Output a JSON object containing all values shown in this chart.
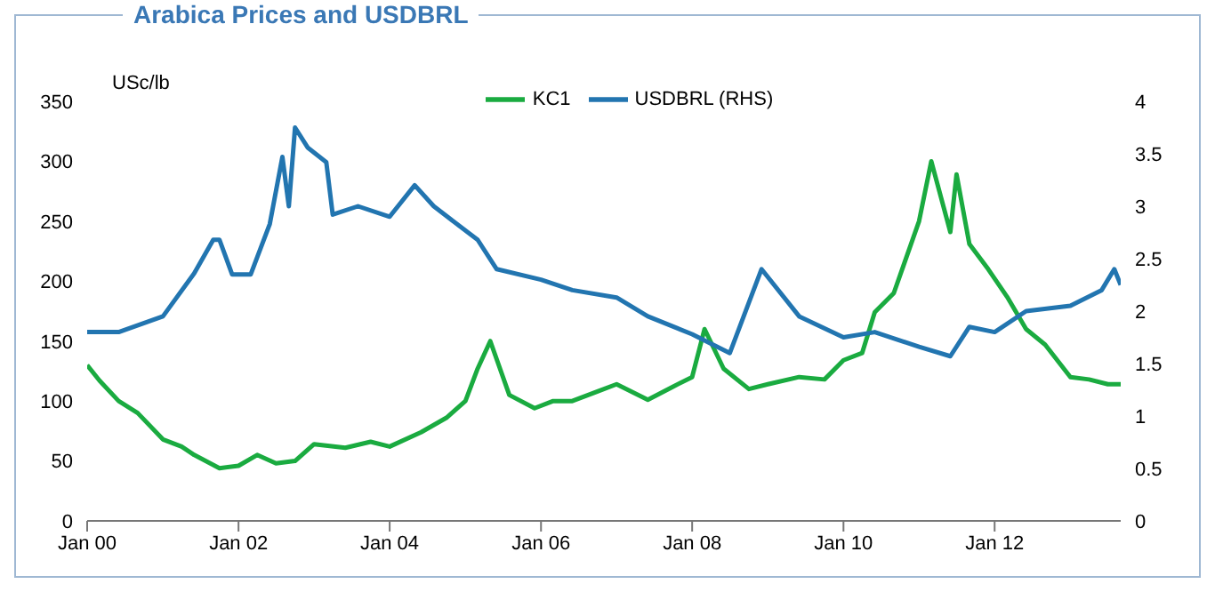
{
  "chart_data": {
    "type": "line",
    "title": "Arabica Prices and USDBRL",
    "ylabel": "USc/lb",
    "series": [
      {
        "name": "KC1",
        "color": "#1aab40",
        "x": [
          "2000-01",
          "2000-03",
          "2000-06",
          "2000-09",
          "2001-01",
          "2001-04",
          "2001-06",
          "2001-10",
          "2002-01",
          "2002-04",
          "2002-07",
          "2002-10",
          "2003-01",
          "2003-06",
          "2003-10",
          "2004-01",
          "2004-06",
          "2004-10",
          "2005-01",
          "2005-03",
          "2005-05",
          "2005-08",
          "2005-12",
          "2006-03",
          "2006-06",
          "2006-10",
          "2007-01",
          "2007-06",
          "2007-10",
          "2008-01",
          "2008-03",
          "2008-06",
          "2008-10",
          "2009-01",
          "2009-06",
          "2009-10",
          "2010-01",
          "2010-04",
          "2010-06",
          "2010-09",
          "2011-01",
          "2011-03",
          "2011-06",
          "2011-07",
          "2011-09",
          "2011-12",
          "2012-03",
          "2012-06",
          "2012-09",
          "2013-01",
          "2013-04",
          "2013-07",
          "2013-09"
        ],
        "values": [
          130,
          117,
          100,
          90,
          68,
          62,
          55,
          44,
          46,
          55,
          48,
          50,
          64,
          61,
          66,
          62,
          74,
          86,
          100,
          127,
          150,
          105,
          94,
          100,
          100,
          108,
          114,
          101,
          112,
          120,
          160,
          127,
          110,
          114,
          120,
          118,
          134,
          140,
          174,
          190,
          250,
          300,
          241,
          289,
          231,
          210,
          187,
          160,
          147,
          120,
          118,
          114,
          114
        ]
      },
      {
        "name": "USDBRL (RHS)",
        "color": "#2275b0",
        "axis": "y2",
        "x": [
          "2000-01",
          "2000-06",
          "2001-01",
          "2001-06",
          "2001-09",
          "2001-10",
          "2001-12",
          "2002-03",
          "2002-06",
          "2002-08",
          "2002-09",
          "2002-10",
          "2002-12",
          "2003-03",
          "2003-04",
          "2003-08",
          "2004-01",
          "2004-05",
          "2004-08",
          "2004-11",
          "2005-03",
          "2005-06",
          "2006-01",
          "2006-06",
          "2007-01",
          "2007-06",
          "2008-01",
          "2008-07",
          "2008-12",
          "2009-06",
          "2010-01",
          "2010-06",
          "2011-01",
          "2011-06",
          "2011-09",
          "2012-01",
          "2012-06",
          "2013-01",
          "2013-06",
          "2013-08",
          "2013-09"
        ],
        "values": [
          1.8,
          1.8,
          1.95,
          2.36,
          2.68,
          2.68,
          2.35,
          2.35,
          2.83,
          3.47,
          3.0,
          3.75,
          3.56,
          3.42,
          2.92,
          3.0,
          2.9,
          3.2,
          3.0,
          2.86,
          2.68,
          2.4,
          2.3,
          2.2,
          2.13,
          1.95,
          1.78,
          1.6,
          2.4,
          1.95,
          1.75,
          1.8,
          1.66,
          1.57,
          1.85,
          1.8,
          2.0,
          2.05,
          2.2,
          2.4,
          2.25
        ]
      }
    ],
    "xlim": [
      "2000-01",
      "2013-09"
    ],
    "xticks": [
      {
        "value": "2000-01",
        "label": "Jan 00"
      },
      {
        "value": "2002-01",
        "label": "Jan 02"
      },
      {
        "value": "2004-01",
        "label": "Jan 04"
      },
      {
        "value": "2006-01",
        "label": "Jan 06"
      },
      {
        "value": "2008-01",
        "label": "Jan 08"
      },
      {
        "value": "2010-01",
        "label": "Jan 10"
      },
      {
        "value": "2012-01",
        "label": "Jan 12"
      }
    ],
    "ylim": [
      0,
      350
    ],
    "yticks": [
      0,
      50,
      100,
      150,
      200,
      250,
      300,
      350
    ],
    "y2lim": [
      0,
      4
    ],
    "y2ticks": [
      0,
      0.5,
      1,
      1.5,
      2,
      2.5,
      3,
      3.5,
      4
    ],
    "legend": "top",
    "grid": false,
    "marker": "none",
    "line_style": "solid"
  }
}
